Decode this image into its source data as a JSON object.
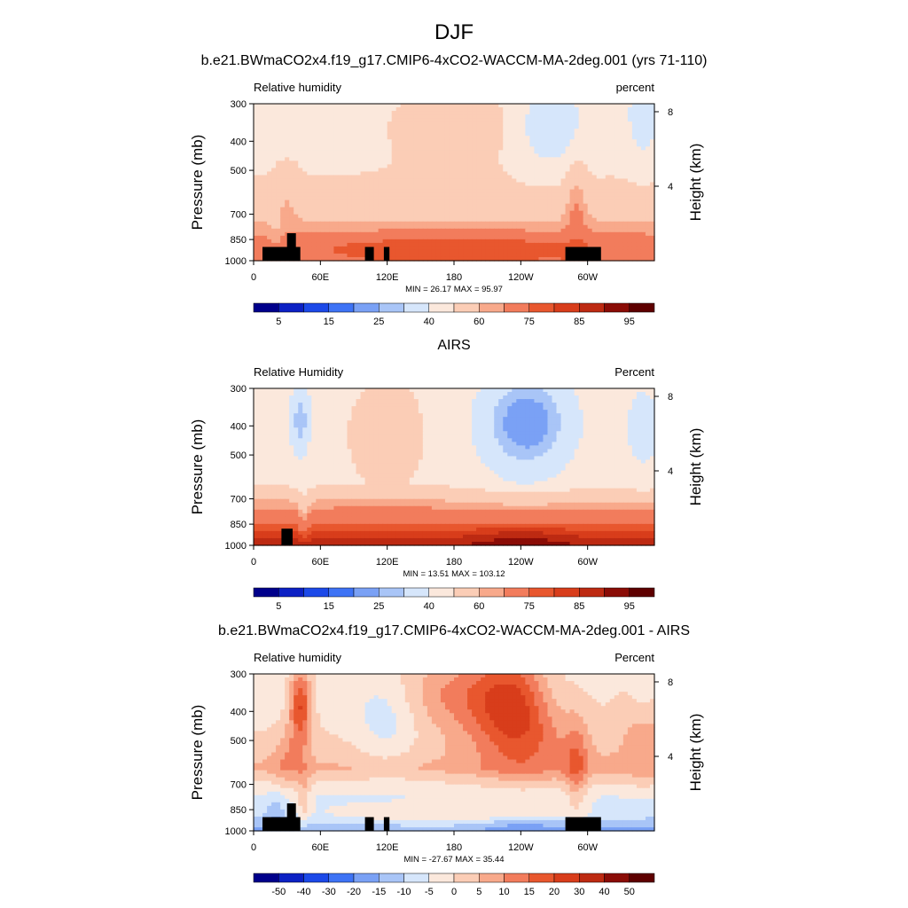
{
  "figure": {
    "title": "DJF"
  },
  "colors": {
    "rh": [
      "#00008b",
      "#0c21c4",
      "#1c49e8",
      "#3e73f5",
      "#7aa1f5",
      "#a9c5f7",
      "#d6e6fb",
      "#fbe8dc",
      "#fbcdb6",
      "#f8a98b",
      "#f27c5c",
      "#e8572e",
      "#d83d1b",
      "#bd2a12",
      "#8a0c06",
      "#5e0000"
    ],
    "diff": [
      "#00008b",
      "#0c21c4",
      "#1c49e8",
      "#3e73f5",
      "#7aa1f5",
      "#a9c5f7",
      "#d6e6fb",
      "#fbe8dc",
      "#fbcdb6",
      "#f8a98b",
      "#f27c5c",
      "#e8572e",
      "#d83d1b",
      "#bd2a12",
      "#8a0c06",
      "#5e0000"
    ],
    "land": "#000000"
  },
  "chart_data": [
    {
      "type": "heatmap",
      "title": "b.e21.BWmaCO2x4.f19_g17.CMIP6-4xCO2-WACCM-MA-2deg.001 (yrs 71-110)",
      "left_string": "Relative humidity",
      "right_string": "percent",
      "ylabel": "Pressure (mb)",
      "ylabel_right": "Height (km)",
      "ylim": [
        1000,
        300
      ],
      "yticks": [
        "300",
        "400",
        "500",
        "700",
        "850",
        "1000"
      ],
      "yticks_right": [
        "8",
        "4"
      ],
      "xlim": [
        0,
        360
      ],
      "xticks": [
        "0",
        "60E",
        "120E",
        "180",
        "120W",
        "60W"
      ],
      "stats": "MIN =  26.17  MAX =  95.97",
      "colorbar_labels": [
        "5",
        "15",
        "25",
        "40",
        "60",
        "75",
        "85",
        "95"
      ],
      "field": "model"
    },
    {
      "type": "heatmap",
      "title": "AIRS",
      "left_string": "Relative Humidity",
      "right_string": "Percent",
      "ylabel": "Pressure (mb)",
      "ylabel_right": "Height (km)",
      "ylim": [
        1000,
        300
      ],
      "yticks": [
        "300",
        "400",
        "500",
        "700",
        "850",
        "1000"
      ],
      "yticks_right": [
        "8",
        "4"
      ],
      "xlim": [
        0,
        360
      ],
      "xticks": [
        "0",
        "60E",
        "120E",
        "180",
        "120W",
        "60W"
      ],
      "stats": "MIN =  13.51  MAX = 103.12",
      "colorbar_labels": [
        "5",
        "15",
        "25",
        "40",
        "60",
        "75",
        "85",
        "95"
      ],
      "field": "airs"
    },
    {
      "type": "heatmap",
      "title": "b.e21.BWmaCO2x4.f19_g17.CMIP6-4xCO2-WACCM-MA-2deg.001 - AIRS",
      "left_string": "Relative humidity",
      "right_string": "Percent",
      "ylabel": "Pressure (mb)",
      "ylabel_right": "Height (km)",
      "ylim": [
        1000,
        300
      ],
      "yticks": [
        "300",
        "400",
        "500",
        "700",
        "850",
        "1000"
      ],
      "yticks_right": [
        "8",
        "4"
      ],
      "xlim": [
        0,
        360
      ],
      "xticks": [
        "0",
        "60E",
        "120E",
        "180",
        "120W",
        "60W"
      ],
      "stats": "MIN = -27.67  MAX =  35.44",
      "colorbar_labels": [
        "-50",
        "-40",
        "-30",
        "-20",
        "-15",
        "-10",
        "-5",
        "0",
        "5",
        "10",
        "15",
        "20",
        "30",
        "40",
        "50"
      ],
      "field": "diff"
    }
  ]
}
